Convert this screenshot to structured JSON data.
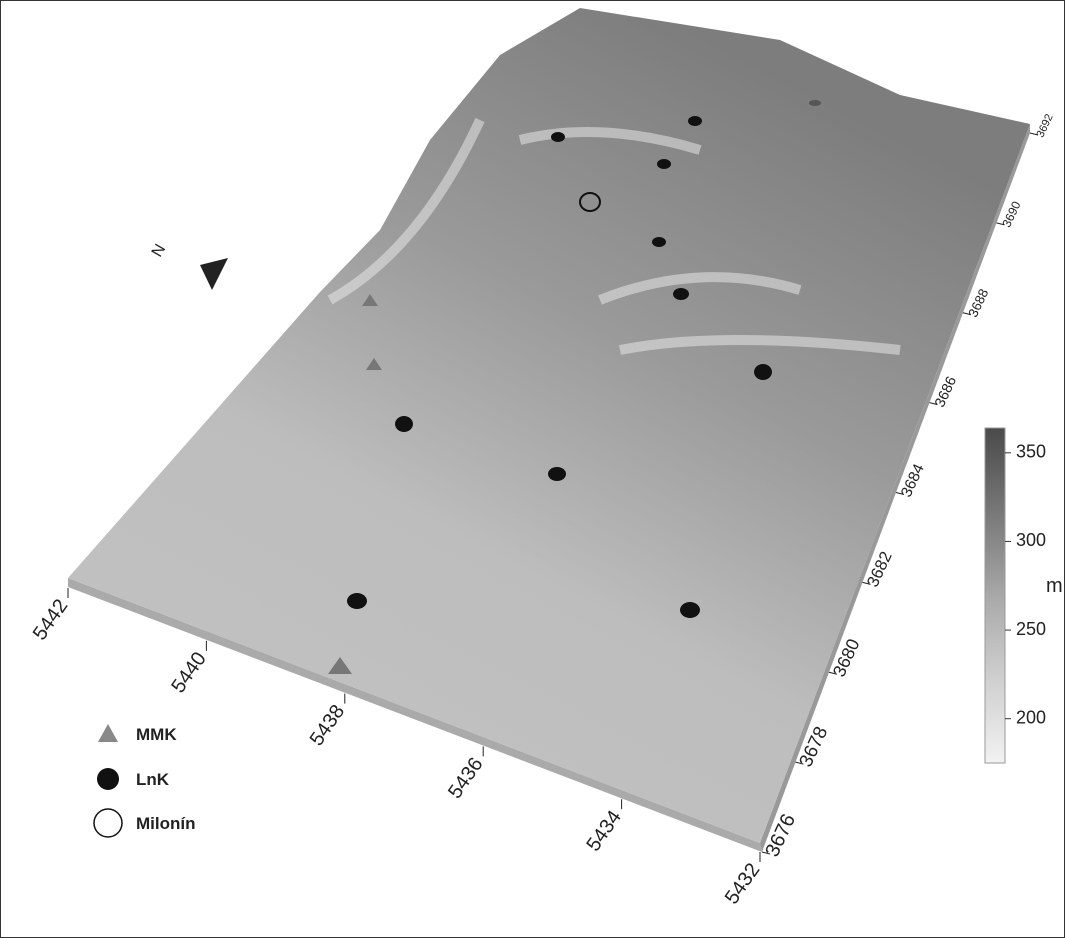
{
  "north_label": "N",
  "x_axis": {
    "ticks": [
      5442,
      5440,
      5438,
      5436,
      5434,
      5432
    ]
  },
  "y_axis": {
    "ticks": [
      3676,
      3678,
      3680,
      3682,
      3684,
      3686,
      3688,
      3690,
      3692
    ]
  },
  "colorbar": {
    "unit": "m",
    "lim": [
      175,
      364
    ],
    "ticks": [
      200,
      250,
      300,
      350
    ]
  },
  "legend": [
    {
      "label": "MMK"
    },
    {
      "label": "LnK"
    },
    {
      "label": "Milonín"
    }
  ]
}
